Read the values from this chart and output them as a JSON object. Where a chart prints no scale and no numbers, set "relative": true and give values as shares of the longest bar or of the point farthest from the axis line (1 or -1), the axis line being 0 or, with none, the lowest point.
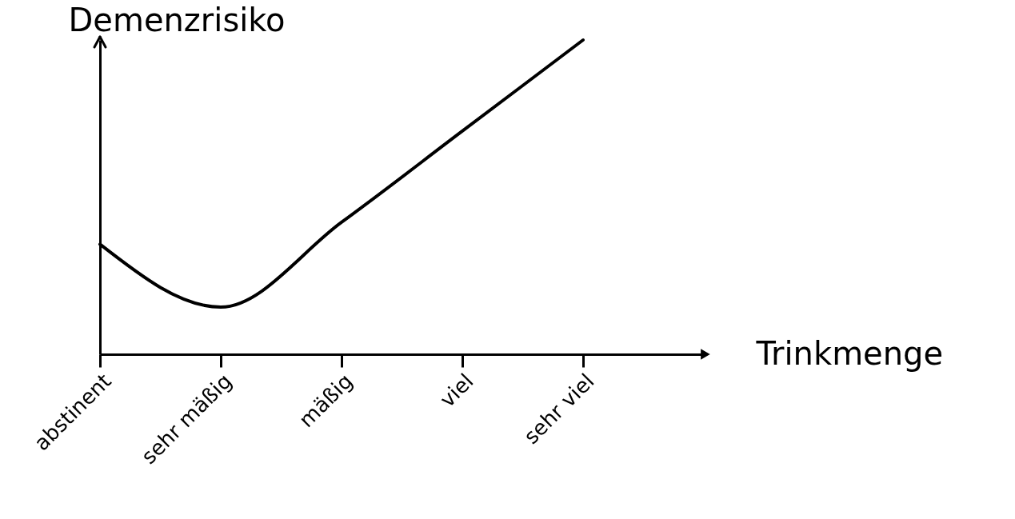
{
  "chart_data": {
    "type": "line",
    "relative": true,
    "xlabel": "Trinkmenge",
    "ylabel": "Demenzrisiko",
    "categories": [
      "abstinent",
      "sehr mäßig",
      "mäßig",
      "viel",
      "sehr viel"
    ],
    "series": [
      {
        "color": "#000000",
        "values": [
          0.35,
          0.15,
          0.42,
          0.71,
          1.0
        ]
      }
    ],
    "grid": false,
    "marker": "none",
    "line_style": "solid"
  }
}
